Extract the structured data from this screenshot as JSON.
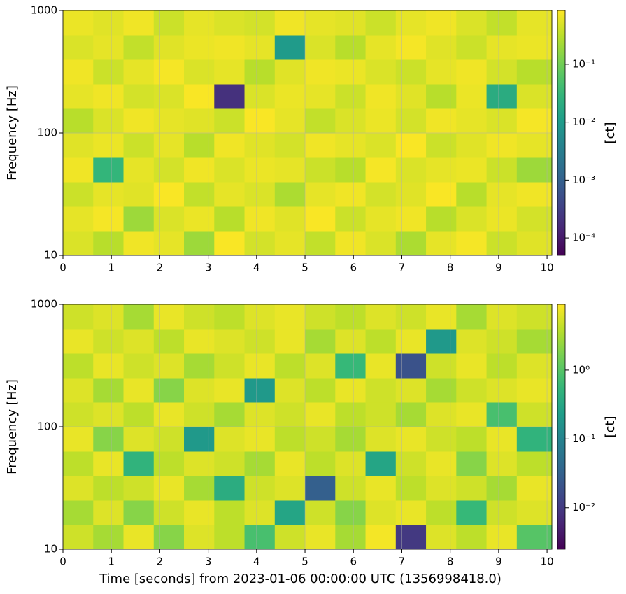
{
  "chart_data": [
    {
      "type": "heatmap",
      "colormap": "viridis",
      "log_y": true,
      "log_color": true,
      "grid": true,
      "ylabel": "Frequency [Hz]",
      "colorbar_label": "[ct]",
      "xlim": [
        0,
        10.1
      ],
      "xticks": [
        0,
        1,
        2,
        3,
        4,
        5,
        6,
        7,
        8,
        9,
        10
      ],
      "ylim": [
        10,
        1000
      ],
      "yticks": [
        10,
        100,
        1000
      ],
      "clim": [
        5e-05,
        0.85
      ],
      "cticks": [
        {
          "value": 0.0001,
          "label": "10⁻⁴"
        },
        {
          "value": 0.001,
          "label": "10⁻³"
        },
        {
          "value": 0.01,
          "label": "10⁻²"
        },
        {
          "value": 0.1,
          "label": "10⁻¹"
        }
      ],
      "x": [
        0,
        0.625,
        1.25,
        1.875,
        2.5,
        3.125,
        3.75,
        4.375,
        5,
        5.625,
        6.25,
        6.875,
        7.5,
        8.125,
        8.75,
        9.375,
        10.1
      ],
      "y": [
        10,
        15.85,
        25.12,
        39.81,
        63.1,
        100,
        158.5,
        251.2,
        398.1,
        631,
        1000
      ],
      "values": [
        [
          0.5,
          0.3,
          0.7,
          0.6,
          0.2,
          0.8,
          0.45,
          0.6,
          0.35,
          0.7,
          0.5,
          0.25,
          0.6,
          0.75,
          0.4,
          0.55
        ],
        [
          0.6,
          0.75,
          0.2,
          0.5,
          0.65,
          0.3,
          0.7,
          0.55,
          0.8,
          0.4,
          0.6,
          0.7,
          0.3,
          0.5,
          0.65,
          0.45
        ],
        [
          0.4,
          0.6,
          0.55,
          0.8,
          0.35,
          0.6,
          0.5,
          0.25,
          0.6,
          0.7,
          0.45,
          0.55,
          0.8,
          0.3,
          0.6,
          0.7
        ],
        [
          0.7,
          0.03,
          0.6,
          0.45,
          0.7,
          0.5,
          0.65,
          0.6,
          0.4,
          0.3,
          0.75,
          0.5,
          0.6,
          0.65,
          0.4,
          0.2
        ],
        [
          0.55,
          0.65,
          0.4,
          0.6,
          0.3,
          0.7,
          0.55,
          0.45,
          0.7,
          0.6,
          0.5,
          0.8,
          0.4,
          0.55,
          0.7,
          0.6
        ],
        [
          0.3,
          0.5,
          0.7,
          0.6,
          0.55,
          0.4,
          0.8,
          0.6,
          0.35,
          0.5,
          0.65,
          0.45,
          0.7,
          0.6,
          0.5,
          0.75
        ],
        [
          0.6,
          0.7,
          0.45,
          0.5,
          0.8,
          0.0002,
          0.5,
          0.65,
          0.6,
          0.4,
          0.7,
          0.55,
          0.3,
          0.65,
          0.02,
          0.5
        ],
        [
          0.7,
          0.4,
          0.6,
          0.75,
          0.5,
          0.6,
          0.3,
          0.55,
          0.7,
          0.65,
          0.5,
          0.4,
          0.6,
          0.7,
          0.45,
          0.3
        ],
        [
          0.5,
          0.6,
          0.35,
          0.55,
          0.65,
          0.7,
          0.6,
          0.01,
          0.5,
          0.3,
          0.6,
          0.75,
          0.55,
          0.4,
          0.6,
          0.65
        ],
        [
          0.65,
          0.55,
          0.7,
          0.4,
          0.6,
          0.5,
          0.45,
          0.7,
          0.6,
          0.55,
          0.4,
          0.6,
          0.7,
          0.5,
          0.35,
          0.6
        ]
      ]
    },
    {
      "type": "heatmap",
      "colormap": "viridis",
      "log_y": true,
      "log_color": true,
      "grid": true,
      "ylabel": "Frequency [Hz]",
      "colorbar_label": "[ct]",
      "xlabel": "Time [seconds] from 2023-01-06 00:00:00 UTC (1356998418.0)",
      "xlim": [
        0,
        10.1
      ],
      "xticks": [
        0,
        1,
        2,
        3,
        4,
        5,
        6,
        7,
        8,
        9,
        10
      ],
      "ylim": [
        10,
        1000
      ],
      "yticks": [
        10,
        100,
        1000
      ],
      "clim": [
        0.0025,
        9
      ],
      "cticks": [
        {
          "value": 0.01,
          "label": "10⁻²"
        },
        {
          "value": 0.1,
          "label": "10⁻¹"
        },
        {
          "value": 1,
          "label": "10⁰"
        }
      ],
      "x": [
        0,
        0.625,
        1.25,
        1.875,
        2.5,
        3.125,
        3.75,
        4.375,
        5,
        5.625,
        6.25,
        6.875,
        7.5,
        8.125,
        8.75,
        9.375,
        10.1
      ],
      "y": [
        10,
        15.85,
        25.12,
        39.81,
        63.1,
        100,
        158.5,
        251.2,
        398.1,
        631,
        1000
      ],
      "values": [
        [
          5,
          3,
          7,
          2,
          6,
          4,
          0.8,
          5,
          7,
          3,
          8,
          0.01,
          6,
          4,
          7,
          1
        ],
        [
          3,
          6,
          2,
          5,
          7,
          4,
          6,
          0.3,
          5,
          2,
          6,
          7,
          4,
          0.6,
          5,
          6
        ],
        [
          6,
          4,
          5,
          7,
          3,
          0.4,
          5,
          6,
          0.03,
          5,
          7,
          4,
          6,
          5,
          3,
          7
        ],
        [
          4,
          7,
          0.5,
          4,
          6,
          5,
          3,
          7,
          4,
          6,
          0.3,
          5,
          7,
          2,
          6,
          4
        ],
        [
          7,
          2,
          6,
          5,
          0.2,
          6,
          7,
          4,
          5,
          3,
          6,
          7,
          5,
          4,
          7,
          0.5
        ],
        [
          5,
          6,
          4,
          7,
          5,
          3,
          6,
          5,
          7,
          4,
          5,
          3,
          6,
          7,
          0.8,
          5
        ],
        [
          6,
          3,
          7,
          2,
          6,
          7,
          0.2,
          6,
          4,
          7,
          5,
          6,
          3,
          5,
          6,
          7
        ],
        [
          4,
          7,
          5,
          6,
          3,
          5,
          7,
          4,
          6,
          0.6,
          7,
          0.02,
          5,
          7,
          4,
          6
        ],
        [
          7,
          5,
          6,
          4,
          7,
          6,
          5,
          7,
          3,
          6,
          4,
          7,
          0.2,
          6,
          5,
          3
        ],
        [
          5,
          6,
          3,
          7,
          5,
          4,
          6,
          7,
          5,
          4,
          6,
          5,
          7,
          3,
          6,
          5
        ]
      ]
    }
  ]
}
